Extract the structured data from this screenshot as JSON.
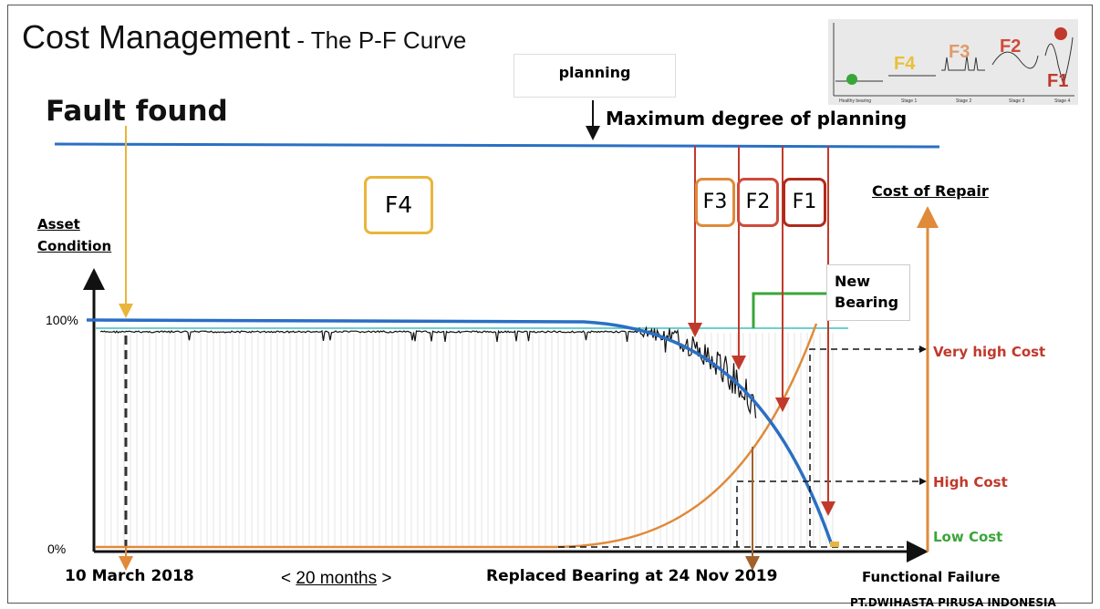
{
  "title": {
    "main": "Cost Management",
    "separator": " - ",
    "sub": "The P-F Curve"
  },
  "fault_found": "Fault found",
  "planning_box": "planning",
  "max_planning": "Maximum degree of planning",
  "stages": {
    "f4": "F4",
    "f3": "F3",
    "f2": "F2",
    "f1": "F1"
  },
  "cost_of_repair": "Cost of Repair",
  "y_axis_label": [
    "Asset",
    "Condition"
  ],
  "y_ticks": {
    "top": "100%",
    "bottom": "0%"
  },
  "new_bearing": [
    "New",
    "Bearing"
  ],
  "costs": {
    "very_high": "Very high Cost",
    "high": "High Cost",
    "low": "Low Cost"
  },
  "bottom": {
    "start_date": "10 March 2018",
    "duration_prefix": "< ",
    "duration": "20 months",
    "duration_suffix": " >",
    "replaced": "Replaced Bearing at  24 Nov 2019",
    "functional_failure": "Functional Failure"
  },
  "footer": "PT.DWIHASTA  PIRUSA    INDONESIA",
  "thumbnail": {
    "stage_labels": [
      "Healthy bearing",
      "Stage 1",
      "Stage 2",
      "Stage 3",
      "Stage 4"
    ],
    "stage_marks": [
      "F4",
      "F3",
      "F2",
      "F1"
    ]
  },
  "colors": {
    "blue": "#2a6fc4",
    "red": "#c0392b",
    "orange": "#e08a3a",
    "yellow": "#e9b53a",
    "green": "#3aa63a",
    "teal": "#6fcfcf"
  }
}
